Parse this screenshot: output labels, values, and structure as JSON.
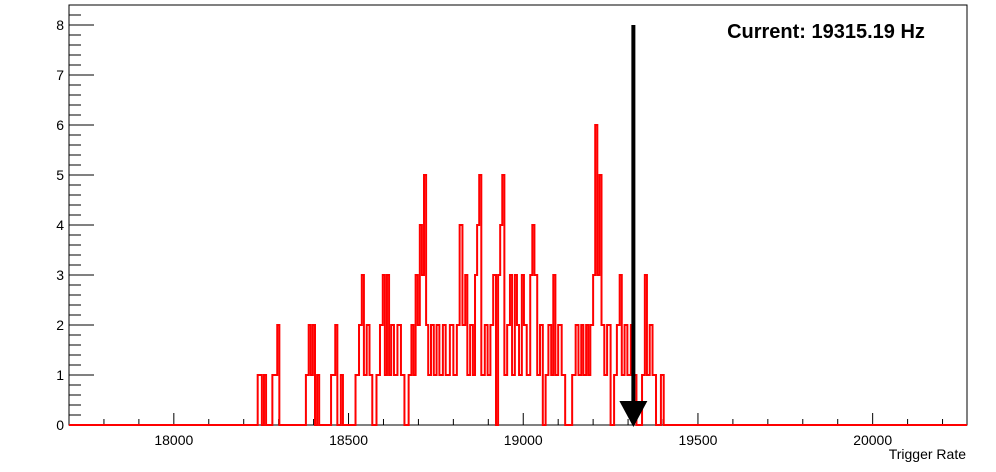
{
  "chart_data": {
    "type": "histogram",
    "title": "",
    "xlabel": "Trigger Rate",
    "ylabel": "",
    "xlim": [
      17700,
      20270
    ],
    "ylim": [
      0,
      8.4
    ],
    "x_ticks": [
      18000,
      18500,
      19000,
      19500,
      20000
    ],
    "y_ticks": [
      0,
      1,
      2,
      3,
      4,
      5,
      6,
      7,
      8
    ],
    "grid": false,
    "legend": "none",
    "series_color": "#ff0000",
    "bins": [
      [
        18240,
        1
      ],
      [
        18252,
        0
      ],
      [
        18258,
        1
      ],
      [
        18264,
        0
      ],
      [
        18282,
        1
      ],
      [
        18290,
        1
      ],
      [
        18296,
        2
      ],
      [
        18302,
        0
      ],
      [
        18378,
        1
      ],
      [
        18386,
        2
      ],
      [
        18392,
        1
      ],
      [
        18398,
        2
      ],
      [
        18404,
        0
      ],
      [
        18410,
        1
      ],
      [
        18416,
        0
      ],
      [
        18450,
        1
      ],
      [
        18456,
        1
      ],
      [
        18462,
        2
      ],
      [
        18468,
        0
      ],
      [
        18478,
        1
      ],
      [
        18484,
        0
      ],
      [
        18520,
        1
      ],
      [
        18530,
        2
      ],
      [
        18538,
        3
      ],
      [
        18544,
        1
      ],
      [
        18552,
        2
      ],
      [
        18560,
        1
      ],
      [
        18568,
        0
      ],
      [
        18580,
        1
      ],
      [
        18590,
        2
      ],
      [
        18598,
        3
      ],
      [
        18604,
        1
      ],
      [
        18610,
        3
      ],
      [
        18616,
        1
      ],
      [
        18622,
        2
      ],
      [
        18630,
        1
      ],
      [
        18640,
        2
      ],
      [
        18650,
        1
      ],
      [
        18660,
        0
      ],
      [
        18672,
        1
      ],
      [
        18680,
        2
      ],
      [
        18686,
        1
      ],
      [
        18692,
        3
      ],
      [
        18698,
        2
      ],
      [
        18704,
        4
      ],
      [
        18710,
        3
      ],
      [
        18716,
        5
      ],
      [
        18722,
        2
      ],
      [
        18728,
        1
      ],
      [
        18736,
        2
      ],
      [
        18744,
        1
      ],
      [
        18752,
        2
      ],
      [
        18760,
        1
      ],
      [
        18770,
        2
      ],
      [
        18778,
        1
      ],
      [
        18790,
        2
      ],
      [
        18800,
        1
      ],
      [
        18810,
        2
      ],
      [
        18818,
        4
      ],
      [
        18826,
        2
      ],
      [
        18834,
        3
      ],
      [
        18840,
        1
      ],
      [
        18848,
        2
      ],
      [
        18856,
        1
      ],
      [
        18862,
        3
      ],
      [
        18868,
        4
      ],
      [
        18874,
        5
      ],
      [
        18880,
        1
      ],
      [
        18890,
        2
      ],
      [
        18898,
        1
      ],
      [
        18906,
        2
      ],
      [
        18914,
        3
      ],
      [
        18922,
        0
      ],
      [
        18928,
        3
      ],
      [
        18934,
        4
      ],
      [
        18940,
        5
      ],
      [
        18946,
        1
      ],
      [
        18954,
        2
      ],
      [
        18962,
        3
      ],
      [
        18968,
        1
      ],
      [
        18976,
        3
      ],
      [
        18982,
        2
      ],
      [
        18988,
        1
      ],
      [
        18996,
        3
      ],
      [
        19002,
        2
      ],
      [
        19010,
        1
      ],
      [
        19020,
        3
      ],
      [
        19026,
        4
      ],
      [
        19032,
        3
      ],
      [
        19040,
        1
      ],
      [
        19048,
        2
      ],
      [
        19056,
        0
      ],
      [
        19064,
        1
      ],
      [
        19072,
        2
      ],
      [
        19080,
        1
      ],
      [
        19086,
        3
      ],
      [
        19092,
        1
      ],
      [
        19100,
        2
      ],
      [
        19110,
        1
      ],
      [
        19120,
        0
      ],
      [
        19140,
        1
      ],
      [
        19150,
        2
      ],
      [
        19158,
        1
      ],
      [
        19166,
        2
      ],
      [
        19172,
        1
      ],
      [
        19180,
        2
      ],
      [
        19186,
        1
      ],
      [
        19192,
        2
      ],
      [
        19200,
        3
      ],
      [
        19206,
        6
      ],
      [
        19212,
        3
      ],
      [
        19218,
        5
      ],
      [
        19224,
        2
      ],
      [
        19232,
        1
      ],
      [
        19240,
        2
      ],
      [
        19250,
        0
      ],
      [
        19260,
        1
      ],
      [
        19268,
        2
      ],
      [
        19276,
        3
      ],
      [
        19282,
        1
      ],
      [
        19290,
        2
      ],
      [
        19298,
        1
      ],
      [
        19308,
        2
      ],
      [
        19316,
        1
      ],
      [
        19324,
        0
      ],
      [
        19340,
        1
      ],
      [
        19348,
        3
      ],
      [
        19354,
        1
      ],
      [
        19362,
        2
      ],
      [
        19370,
        1
      ],
      [
        19380,
        0
      ],
      [
        19394,
        1
      ],
      [
        19402,
        0
      ]
    ],
    "arrow": {
      "x": 19315.19,
      "y_top": 8,
      "y_bottom": 0
    },
    "annotation": "Current: 19315.19 Hz"
  }
}
